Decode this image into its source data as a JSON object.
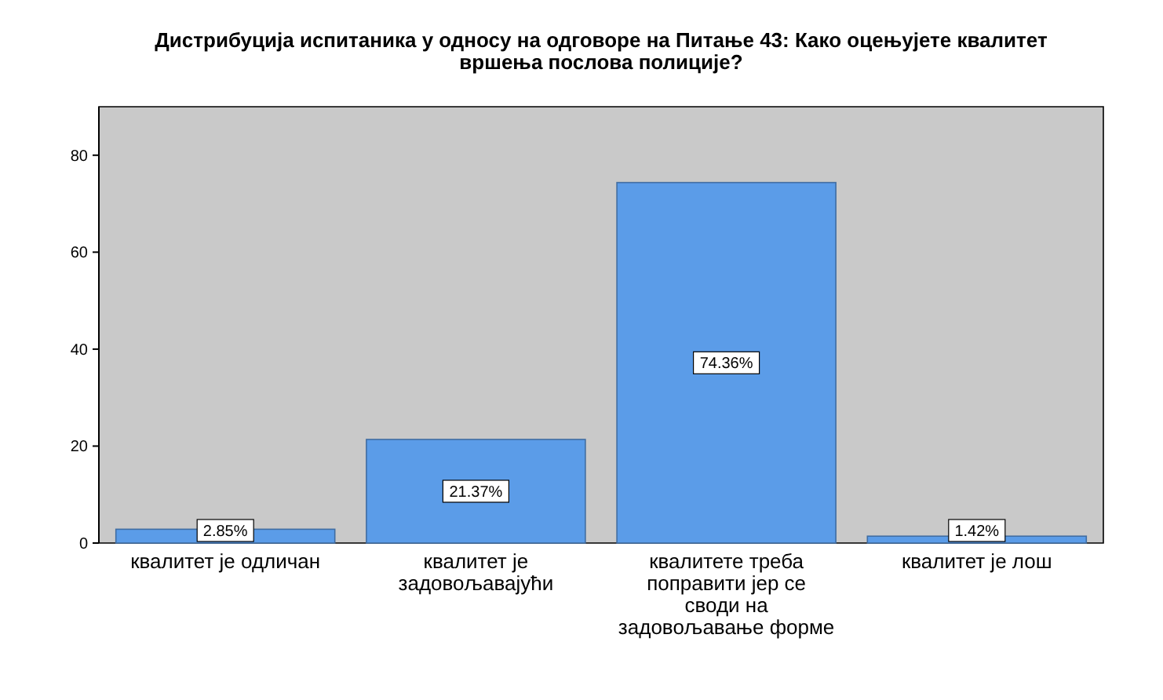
{
  "chart_data": {
    "type": "bar",
    "title": "Дистрибуција испитаника у односу на одговоре на Питање 43: Како оцењујете квалитет вршења послова полиције?",
    "categories": [
      "квалитет је одличан",
      "квалитет је задовољавајући",
      "квалитете треба поправити јер се своди на задовољавање форме",
      "квалитет је лош"
    ],
    "values": [
      2.85,
      21.37,
      74.36,
      1.42
    ],
    "value_labels": [
      "2.85%",
      "21.37%",
      "74.36%",
      "1.42%"
    ],
    "color": "#5b9ce8",
    "ylim": [
      0,
      90
    ],
    "yticks": [
      0,
      20,
      40,
      60,
      80
    ],
    "grid": false
  }
}
